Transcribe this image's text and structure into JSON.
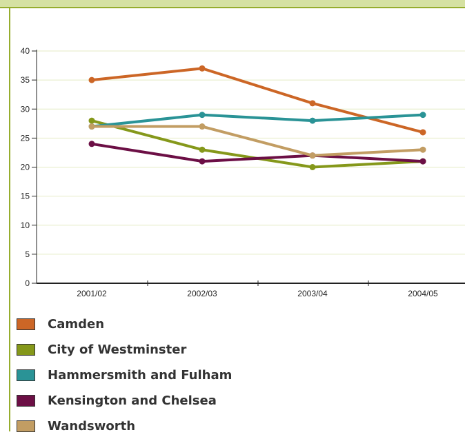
{
  "chart_data": {
    "type": "line",
    "categories": [
      "2001/02",
      "2002/03",
      "2003/04",
      "2004/05"
    ],
    "y_ticks": [
      "0",
      "5",
      "10",
      "15",
      "20",
      "25",
      "30",
      "35",
      "40"
    ],
    "ylim": [
      0,
      40
    ],
    "grid": "horizontal",
    "legend_position": "bottom",
    "series": [
      {
        "name": "Camden",
        "color": "#cc6626",
        "values": [
          35,
          37,
          31,
          26
        ]
      },
      {
        "name": "City of Westminster",
        "color": "#85981a",
        "values": [
          28,
          23,
          20,
          21
        ]
      },
      {
        "name": "Hammersmith and Fulham",
        "color": "#2a9396",
        "values": [
          27,
          29,
          28,
          29
        ]
      },
      {
        "name": "Kensington and Chelsea",
        "color": "#6c0f45",
        "values": [
          24,
          21,
          22,
          21
        ]
      },
      {
        "name": "Wandsworth",
        "color": "#c29d63",
        "values": [
          27,
          27,
          22,
          23
        ]
      }
    ]
  }
}
